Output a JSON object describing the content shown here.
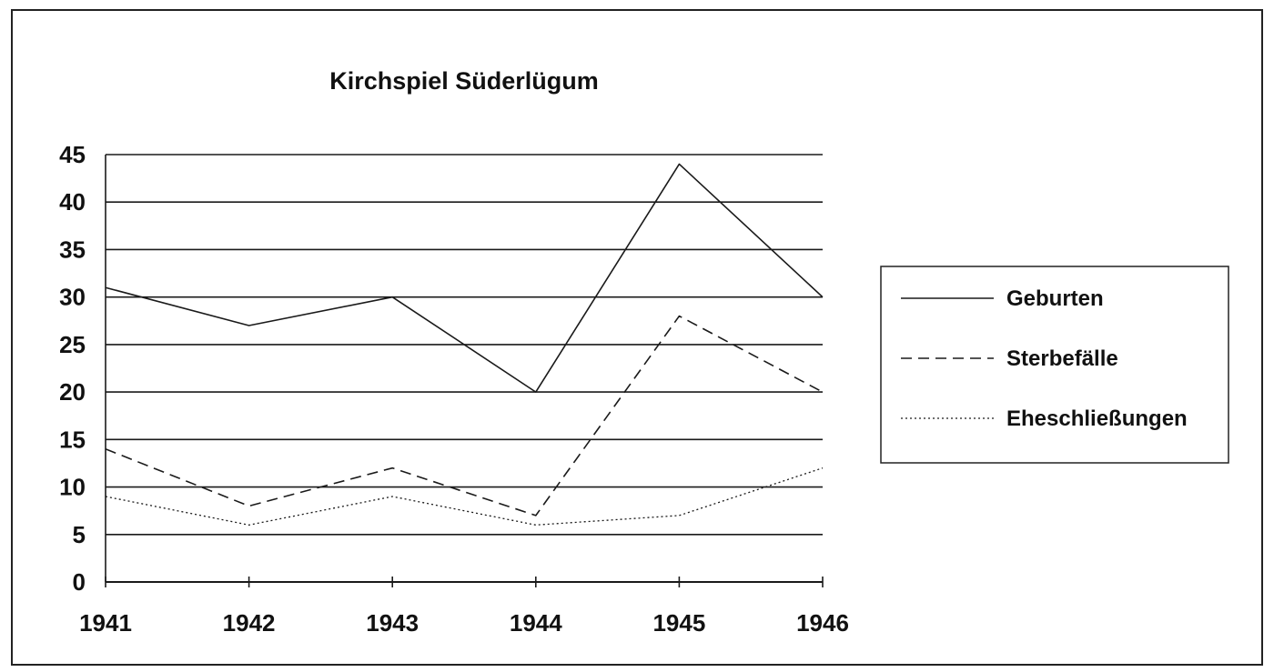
{
  "chart_data": {
    "type": "line",
    "title": "Kirchspiel Süderlügum",
    "xlabel": "",
    "ylabel": "",
    "x": [
      "1941",
      "1942",
      "1943",
      "1944",
      "1945",
      "1946"
    ],
    "ylim": [
      0,
      45
    ],
    "yticks": [
      "0",
      "5",
      "10",
      "15",
      "20",
      "25",
      "30",
      "35",
      "40",
      "45"
    ],
    "grid": true,
    "legend_position": "right",
    "series": [
      {
        "name": "Geburten",
        "values": [
          31,
          27,
          30,
          20,
          44,
          30
        ],
        "style": "solid"
      },
      {
        "name": "Sterbefälle",
        "values": [
          14,
          8,
          12,
          7,
          28,
          20
        ],
        "style": "dashed"
      },
      {
        "name": "Eheschließungen",
        "values": [
          9,
          6,
          9,
          6,
          7,
          12
        ],
        "style": "dotted"
      }
    ],
    "colors": {
      "line": "#1a1a1a",
      "grid": "#1a1a1a",
      "background": "#ffffff"
    }
  }
}
